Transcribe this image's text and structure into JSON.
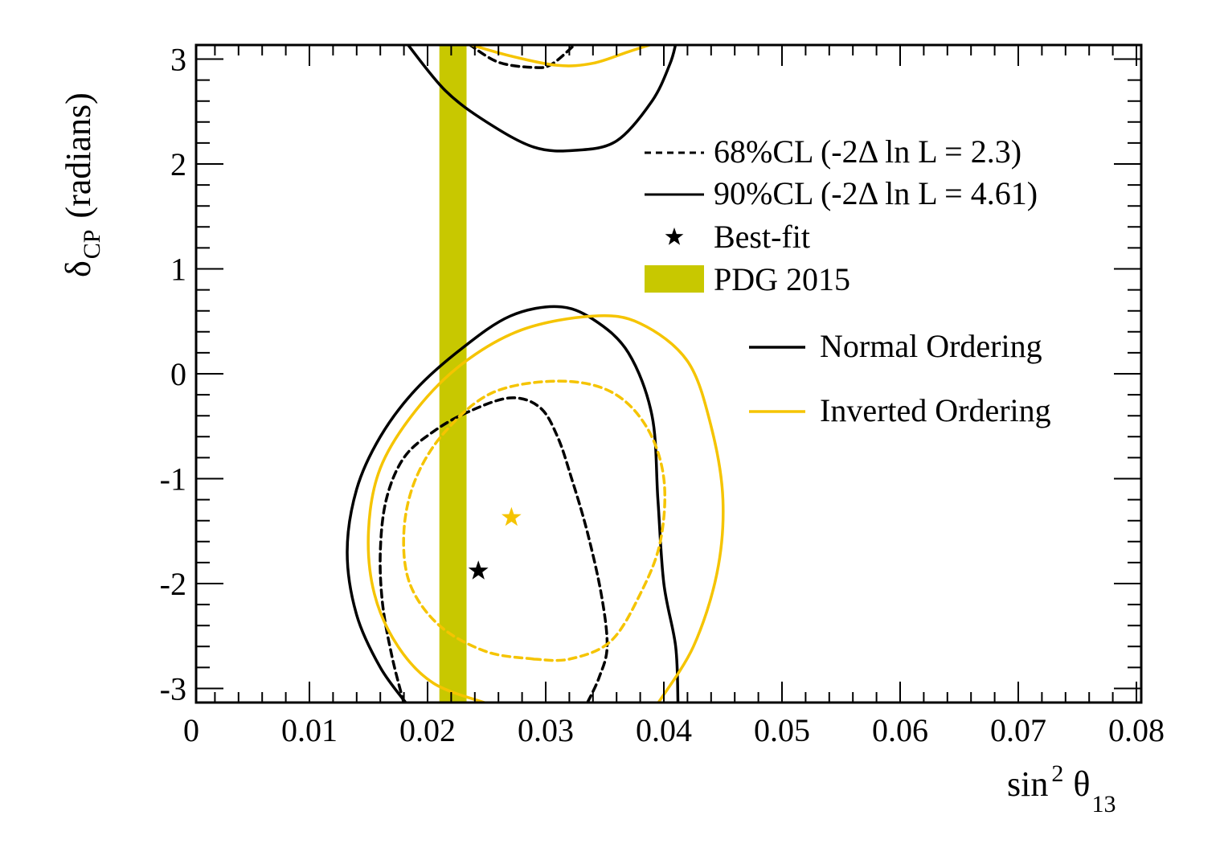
{
  "chart_data": {
    "type": "contour",
    "xlabel": "sin² θ₁₃",
    "ylabel": "δCP (radians)",
    "xlabel_parts": {
      "main": "sin",
      "sup": "2",
      "theta": "θ",
      "sub": "13"
    },
    "ylabel_parts": {
      "delta": "δ",
      "sub": "CP",
      "rest": "(radians)"
    },
    "xlim": [
      0,
      0.081
    ],
    "ylim": [
      -3.1416,
      3.1416
    ],
    "xticks": [
      0,
      0.01,
      0.02,
      0.03,
      0.04,
      0.05,
      0.06,
      0.07,
      0.08
    ],
    "xtick_labels": [
      "0",
      "0.01",
      "0.02",
      "0.03",
      "0.04",
      "0.05",
      "0.06",
      "0.07",
      "0.08"
    ],
    "yticks": [
      -3,
      -2,
      -1,
      0,
      1,
      2,
      3
    ],
    "ytick_labels": [
      "-3",
      "-2",
      "-1",
      "0",
      "1",
      "2",
      "3"
    ],
    "legend": {
      "cl_entries": [
        {
          "style": "dashed",
          "label": "68%CL (-2Δ ln L = 2.3)"
        },
        {
          "style": "solid",
          "label": "90%CL (-2Δ ln L = 4.61)"
        },
        {
          "style": "star",
          "label": "Best-fit"
        },
        {
          "style": "band",
          "label": "PDG 2015"
        }
      ],
      "ordering_entries": [
        {
          "color": "#000000",
          "label": "Normal Ordering"
        },
        {
          "color": "#f5c400",
          "label": "Inverted Ordering"
        }
      ],
      "placement": "top-right"
    },
    "pdg_band": {
      "xmin": 0.021,
      "xmax": 0.0233,
      "color": "#c8c800"
    },
    "best_fit": [
      {
        "ordering": "Normal Ordering",
        "x": 0.0243,
        "y": -1.88,
        "color": "#000000"
      },
      {
        "ordering": "Inverted Ordering",
        "x": 0.0271,
        "y": -1.37,
        "color": "#f5c400"
      }
    ],
    "series": [
      {
        "ordering": "Normal Ordering",
        "level": "68%CL",
        "color": "#000000",
        "style": "dashed",
        "segments": [
          [
            [
              0.018,
              -3.1416
            ],
            [
              0.017,
              -2.7
            ],
            [
              0.0162,
              -2.2
            ],
            [
              0.016,
              -1.7
            ],
            [
              0.0165,
              -1.2
            ],
            [
              0.018,
              -0.8
            ],
            [
              0.0205,
              -0.55
            ],
            [
              0.0235,
              -0.36
            ],
            [
              0.027,
              -0.23
            ],
            [
              0.0295,
              -0.32
            ],
            [
              0.031,
              -0.6
            ],
            [
              0.0322,
              -1.0
            ],
            [
              0.0335,
              -1.5
            ],
            [
              0.0347,
              -2.1
            ],
            [
              0.0352,
              -2.6
            ],
            [
              0.0345,
              -2.9
            ],
            [
              0.0335,
              -3.1416
            ]
          ],
          [
            [
              0.0235,
              3.1416
            ],
            [
              0.026,
              2.97
            ],
            [
              0.029,
              2.92
            ],
            [
              0.0305,
              2.95
            ],
            [
              0.0325,
              3.1416
            ]
          ]
        ]
      },
      {
        "ordering": "Normal Ordering",
        "level": "90%CL",
        "color": "#000000",
        "style": "solid",
        "segments": [
          [
            [
              0.0182,
              -3.1416
            ],
            [
              0.016,
              -2.8
            ],
            [
              0.014,
              -2.3
            ],
            [
              0.0132,
              -1.7
            ],
            [
              0.014,
              -1.1
            ],
            [
              0.016,
              -0.6
            ],
            [
              0.019,
              -0.15
            ],
            [
              0.023,
              0.25
            ],
            [
              0.027,
              0.55
            ],
            [
              0.031,
              0.64
            ],
            [
              0.034,
              0.52
            ],
            [
              0.037,
              0.2
            ],
            [
              0.039,
              -0.4
            ],
            [
              0.0395,
              -1.2
            ],
            [
              0.04,
              -2.0
            ],
            [
              0.041,
              -2.6
            ],
            [
              0.0412,
              -3.1416
            ]
          ],
          [
            [
              0.0183,
              3.1416
            ],
            [
              0.0215,
              2.7
            ],
            [
              0.025,
              2.4
            ],
            [
              0.029,
              2.16
            ],
            [
              0.0325,
              2.13
            ],
            [
              0.036,
              2.22
            ],
            [
              0.039,
              2.6
            ],
            [
              0.0405,
              2.95
            ],
            [
              0.041,
              3.1416
            ]
          ]
        ]
      },
      {
        "ordering": "Inverted Ordering",
        "level": "68%CL",
        "color": "#f5c400",
        "style": "dashed",
        "segments": [
          [
            [
              0.029,
              -2.72
            ],
            [
              0.025,
              -2.65
            ],
            [
              0.021,
              -2.4
            ],
            [
              0.0185,
              -2.0
            ],
            [
              0.018,
              -1.5
            ],
            [
              0.019,
              -1.0
            ],
            [
              0.0215,
              -0.55
            ],
            [
              0.0255,
              -0.18
            ],
            [
              0.031,
              -0.07
            ],
            [
              0.0355,
              -0.17
            ],
            [
              0.0385,
              -0.5
            ],
            [
              0.04,
              -1.0
            ],
            [
              0.0397,
              -1.6
            ],
            [
              0.038,
              -2.1
            ],
            [
              0.0355,
              -2.55
            ],
            [
              0.032,
              -2.72
            ],
            [
              0.029,
              -2.72
            ]
          ]
        ]
      },
      {
        "ordering": "Inverted Ordering",
        "level": "90%CL",
        "color": "#f5c400",
        "style": "solid",
        "segments": [
          [
            [
              0.025,
              -3.1416
            ],
            [
              0.0205,
              -2.95
            ],
            [
              0.0175,
              -2.6
            ],
            [
              0.0155,
              -2.1
            ],
            [
              0.015,
              -1.5
            ],
            [
              0.016,
              -0.9
            ],
            [
              0.019,
              -0.35
            ],
            [
              0.023,
              0.1
            ],
            [
              0.028,
              0.42
            ],
            [
              0.034,
              0.55
            ],
            [
              0.038,
              0.48
            ],
            [
              0.042,
              0.12
            ],
            [
              0.044,
              -0.5
            ],
            [
              0.045,
              -1.2
            ],
            [
              0.0445,
              -1.9
            ],
            [
              0.0425,
              -2.6
            ],
            [
              0.0395,
              -3.1416
            ]
          ],
          [
            [
              0.0235,
              3.1416
            ],
            [
              0.027,
              3.03
            ],
            [
              0.031,
              2.94
            ],
            [
              0.034,
              2.96
            ],
            [
              0.037,
              3.07
            ],
            [
              0.039,
              3.1416
            ]
          ]
        ]
      }
    ]
  }
}
